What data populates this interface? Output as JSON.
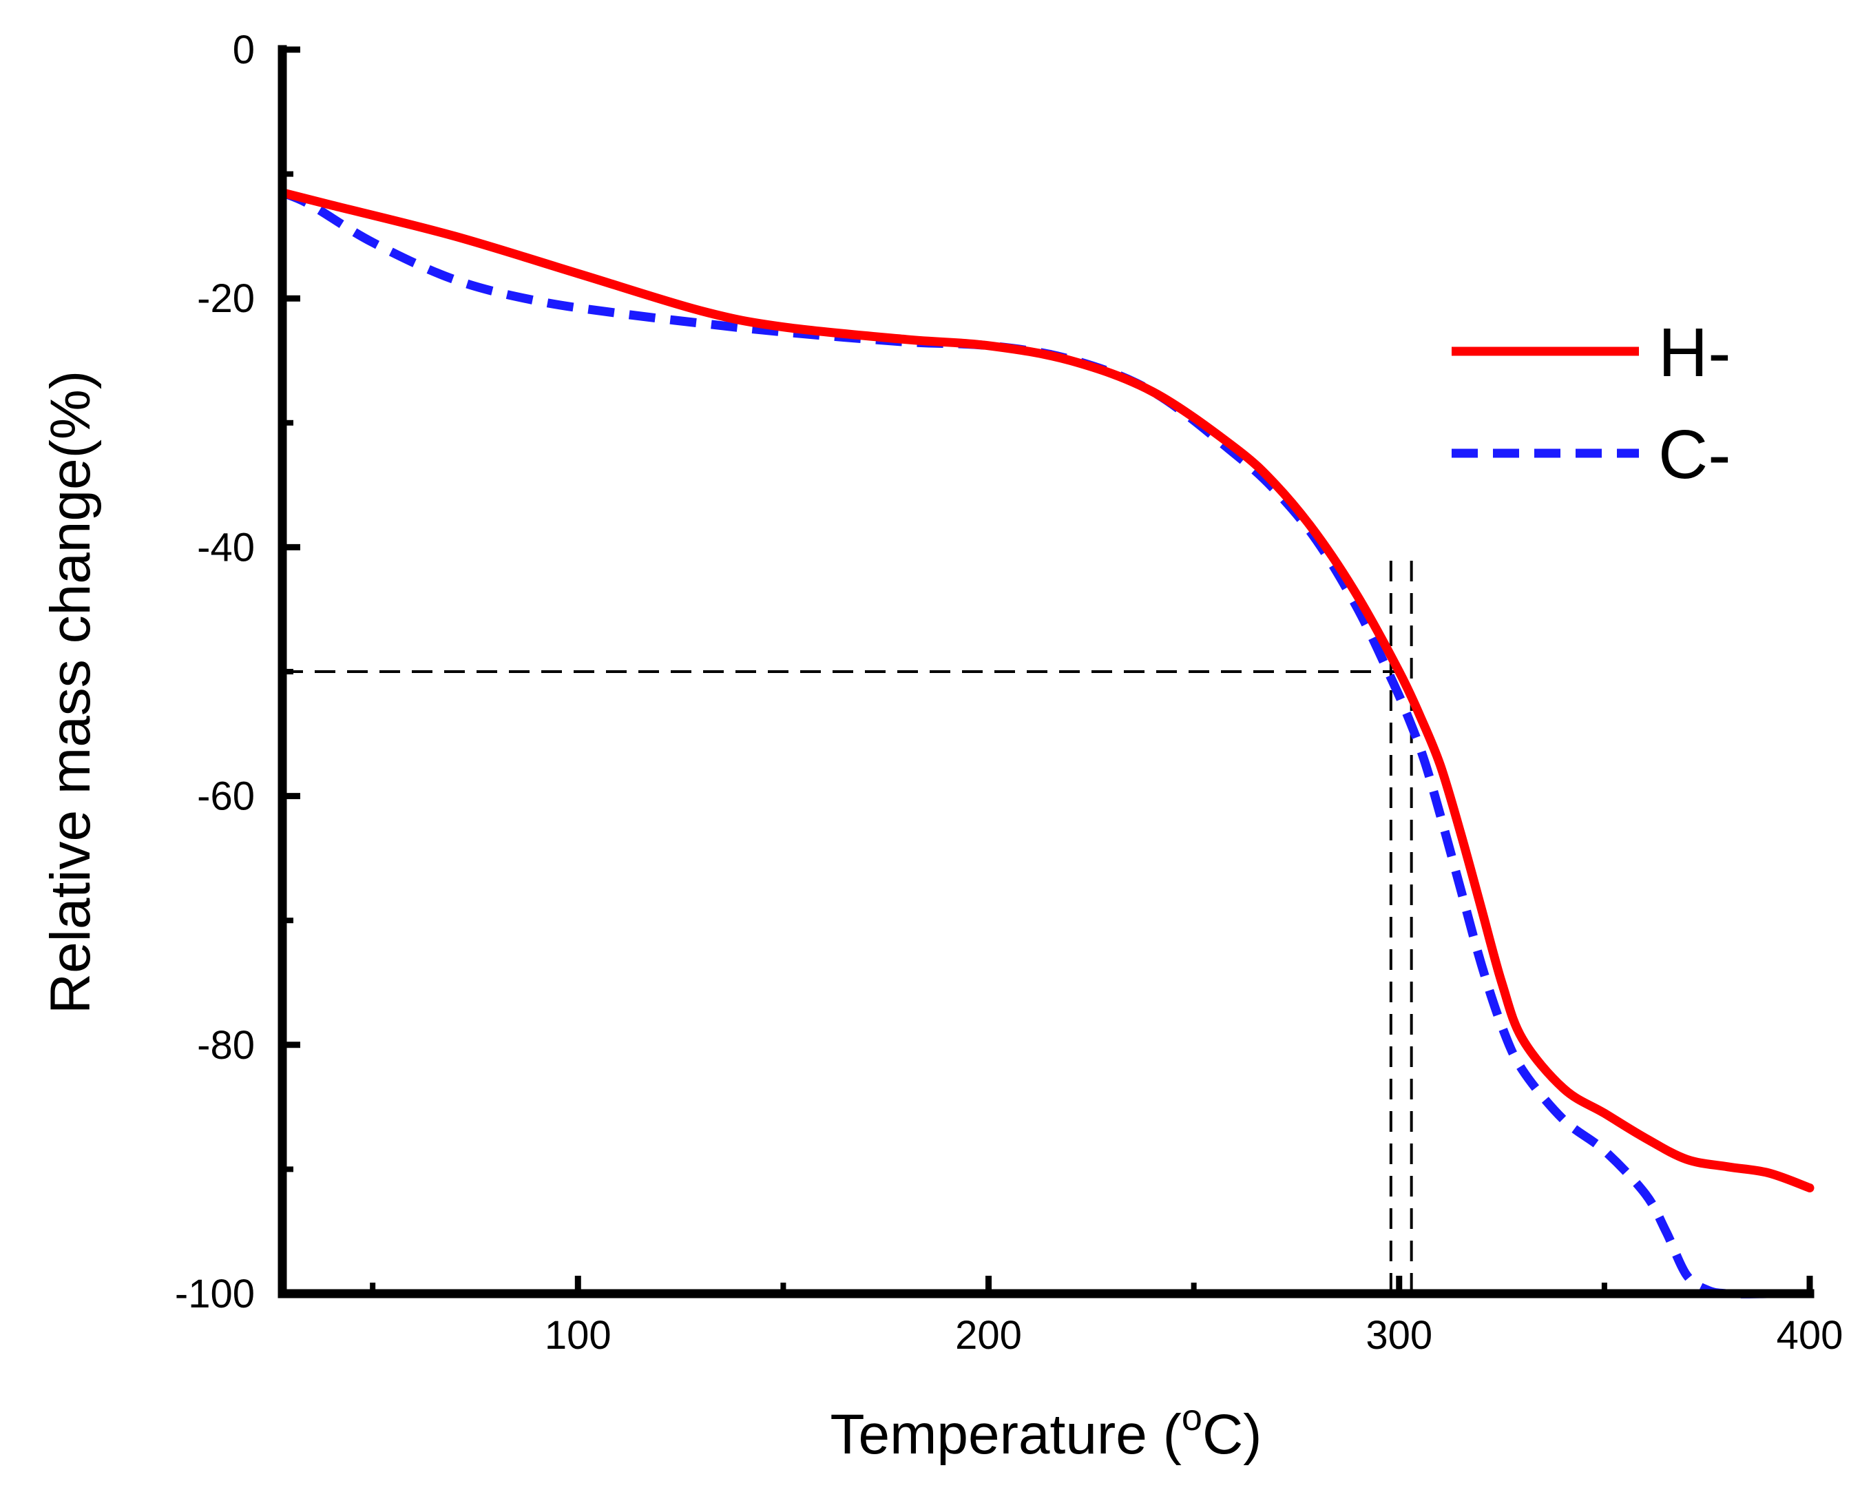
{
  "chart_data": {
    "type": "line",
    "title": "",
    "xlabel": "Temperature (",
    "xlabel_sup": "o",
    "xlabel_unit": "C)",
    "ylabel": "Relative mass change(%)",
    "xlim": [
      28,
      400
    ],
    "ylim": [
      -100,
      0
    ],
    "x_ticks": [
      100,
      200,
      300,
      400
    ],
    "x_tick_labels": [
      "100",
      "200",
      "300",
      "400"
    ],
    "x_minor_ticks": [
      50,
      150,
      250,
      350
    ],
    "y_ticks": [
      0,
      -20,
      -40,
      -60,
      -80,
      -100
    ],
    "y_tick_labels": [
      "0",
      "-20",
      "-40",
      "-60",
      "-80",
      "-100"
    ],
    "y_minor_ticks": [
      -10,
      -30,
      -50,
      -70,
      -90
    ],
    "grid": false,
    "legend": "right",
    "series": [
      {
        "name": "H-",
        "color": "#ff0000",
        "style": "solid",
        "x": [
          28,
          40,
          70,
          100,
          130,
          150,
          180,
          200,
          220,
          240,
          260,
          270,
          280,
          290,
          300,
          305,
          310,
          315,
          320,
          325,
          330,
          340,
          350,
          360,
          370,
          380,
          390,
          400
        ],
        "y": [
          -11.5,
          -12.5,
          -15,
          -18,
          -21,
          -22.3,
          -23.3,
          -23.8,
          -25,
          -27.5,
          -32,
          -35,
          -39,
          -44,
          -50,
          -53.5,
          -57.5,
          -63,
          -69,
          -75,
          -79.5,
          -83.5,
          -85.5,
          -87.5,
          -89.2,
          -89.8,
          -90.3,
          -91.5
        ]
      },
      {
        "name": "C-",
        "color": "#1a1aff",
        "style": "dashed",
        "x": [
          28,
          35,
          50,
          70,
          90,
          110,
          130,
          150,
          180,
          200,
          220,
          240,
          260,
          270,
          280,
          290,
          298,
          302,
          306,
          310,
          315,
          320,
          325,
          330,
          340,
          350,
          360,
          365,
          370,
          375,
          380,
          390
        ],
        "y": [
          -11.5,
          -12.5,
          -15.5,
          -18.5,
          -20.2,
          -21.2,
          -22,
          -22.7,
          -23.5,
          -23.8,
          -24.9,
          -27.5,
          -32.5,
          -35.5,
          -39.5,
          -45,
          -50.5,
          -53.5,
          -57,
          -61.5,
          -67.5,
          -73.5,
          -78.5,
          -82,
          -86,
          -88.5,
          -92,
          -95,
          -98.5,
          -99.7,
          -100,
          -100
        ]
      }
    ],
    "reference_lines": {
      "horizontal_y": -50,
      "horizontal_x_from": 28,
      "horizontal_x_to": 300,
      "vertical_x": [
        298,
        303
      ],
      "vertical_y_from": -100,
      "vertical_y_to": -41
    }
  }
}
